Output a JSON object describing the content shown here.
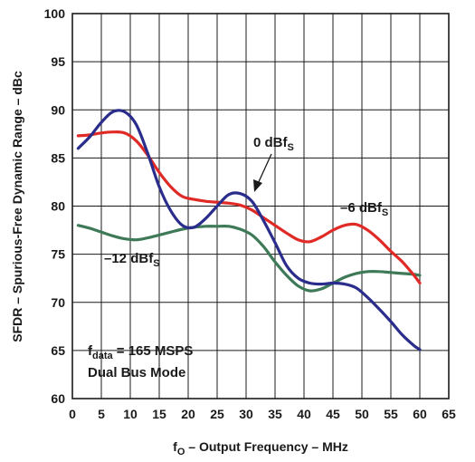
{
  "chart_data": {
    "type": "line",
    "xlabel": {
      "main": "f",
      "sub": "O",
      "rest": " – Output Frequency – MHz"
    },
    "ylabel": "SFDR – Spurious-Free Dynamic Range – dBc",
    "xlim": [
      0,
      65
    ],
    "ylim": [
      60,
      100
    ],
    "xticks": [
      0,
      5,
      10,
      15,
      20,
      25,
      30,
      35,
      40,
      45,
      50,
      55,
      60,
      65
    ],
    "yticks": [
      60,
      65,
      70,
      75,
      80,
      85,
      90,
      95,
      100
    ],
    "grid": true,
    "series": [
      {
        "name": "0 dBFS",
        "color": "#2b2d8c",
        "x": [
          1,
          3,
          5,
          7,
          9,
          11,
          13,
          15,
          17,
          19,
          21,
          23,
          25,
          27,
          29,
          31,
          33,
          35,
          37,
          39,
          41,
          43,
          45,
          47,
          49,
          51,
          53,
          55,
          57,
          59,
          60
        ],
        "y": [
          86,
          87.2,
          88.7,
          89.8,
          89.8,
          88.5,
          85.5,
          82,
          79.5,
          78,
          77.8,
          78.7,
          80,
          81.2,
          81.3,
          80.5,
          78.5,
          76.2,
          73.8,
          72.5,
          72,
          71.9,
          72,
          71.9,
          71.5,
          70.5,
          69.3,
          68,
          66.6,
          65.5,
          65.1
        ]
      },
      {
        "name": "–6 dBFS",
        "color": "#e02a26",
        "x": [
          1,
          3,
          5,
          7,
          9,
          11,
          13,
          15,
          17,
          19,
          21,
          23,
          25,
          27,
          29,
          31,
          33,
          35,
          37,
          39,
          41,
          43,
          45,
          47,
          49,
          51,
          53,
          55,
          57,
          59,
          60
        ],
        "y": [
          87.3,
          87.4,
          87.6,
          87.7,
          87.6,
          86.8,
          85.3,
          83.5,
          82,
          81,
          80.7,
          80.5,
          80.4,
          80.3,
          80.1,
          79.6,
          78.8,
          78,
          77.2,
          76.5,
          76.3,
          76.8,
          77.5,
          78,
          78.1,
          77.5,
          76.5,
          75.3,
          74.2,
          72.8,
          72
        ]
      },
      {
        "name": "–12 dBFS",
        "color": "#3e7a58",
        "x": [
          1,
          3,
          5,
          7,
          9,
          11,
          13,
          15,
          17,
          19,
          21,
          23,
          25,
          27,
          29,
          31,
          33,
          35,
          37,
          39,
          41,
          43,
          45,
          47,
          49,
          51,
          53,
          55,
          57,
          59,
          60
        ],
        "y": [
          78,
          77.7,
          77.3,
          76.9,
          76.6,
          76.5,
          76.7,
          77,
          77.3,
          77.6,
          77.8,
          77.9,
          77.9,
          77.9,
          77.6,
          77,
          75.8,
          74.2,
          72.8,
          71.7,
          71.2,
          71.4,
          72,
          72.6,
          73,
          73.2,
          73.2,
          73.1,
          73,
          72.9,
          72.8
        ]
      }
    ],
    "annotations": {
      "a0": {
        "main": "0 dBf",
        "sub": "S"
      },
      "a6": {
        "main": "–6 dBf",
        "sub": "S"
      },
      "a12": {
        "main": "–12 dBf",
        "sub": "S"
      },
      "fdata": {
        "main": "f",
        "sub": "data",
        "rest": " = 165 MSPS"
      },
      "mode": "Dual Bus Mode"
    }
  }
}
